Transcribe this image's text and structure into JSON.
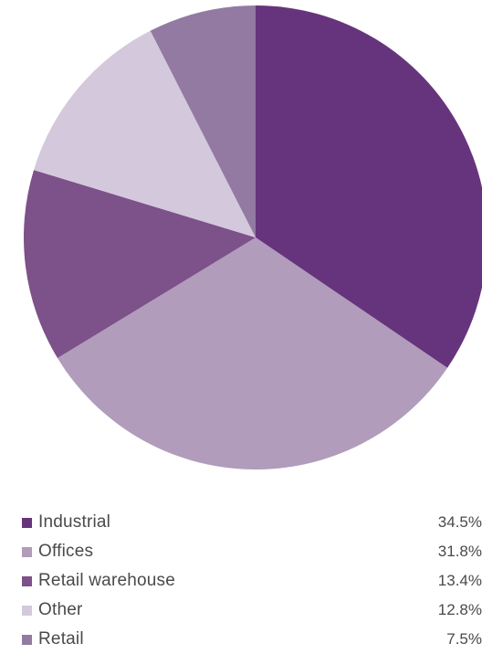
{
  "chart_data": {
    "type": "pie",
    "title": "",
    "slices": [
      {
        "label": "Industrial",
        "value": 34.5,
        "value_label": "34.5%",
        "color": "#66347c"
      },
      {
        "label": "Offices",
        "value": 31.8,
        "value_label": "31.8%",
        "color": "#b19cbb"
      },
      {
        "label": "Retail warehouse",
        "value": 13.4,
        "value_label": "13.4%",
        "color": "#7d5189"
      },
      {
        "label": "Other",
        "value": 12.8,
        "value_label": "12.8%",
        "color": "#d4c8dc"
      },
      {
        "label": "Retail",
        "value": 7.5,
        "value_label": "7.5%",
        "color": "#927aa2"
      }
    ],
    "start_angle_deg": 0,
    "direction": "clockwise",
    "legend_position": "bottom"
  }
}
